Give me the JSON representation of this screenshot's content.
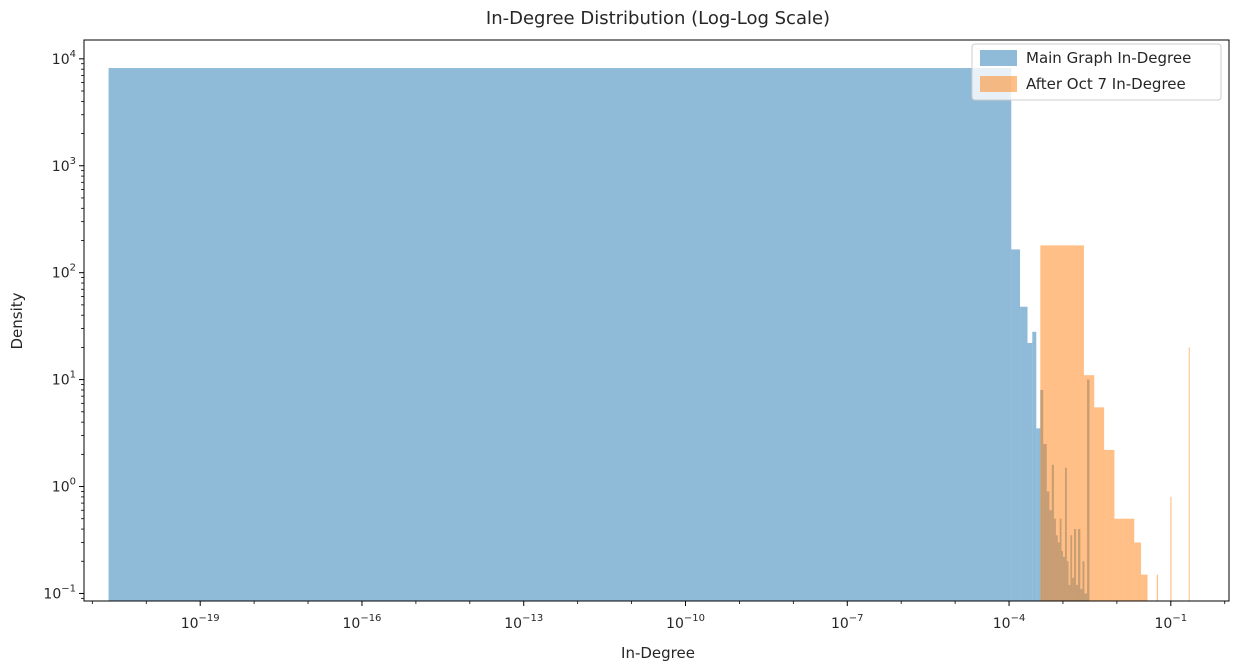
{
  "chart_data": {
    "type": "histogram",
    "title": "In-Degree Distribution (Log-Log Scale)",
    "xlabel": "In-Degree",
    "ylabel": "Density",
    "xscale": "log",
    "yscale": "log",
    "xlim": [
      7e-22,
      1.2
    ],
    "ylim": [
      0.085,
      15000
    ],
    "grid": false,
    "legend_position": "top-right",
    "x_ticks": [
      {
        "value": 1e-19,
        "base": "10",
        "exp": "−19"
      },
      {
        "value": 1e-16,
        "base": "10",
        "exp": "−16"
      },
      {
        "value": 1e-13,
        "base": "10",
        "exp": "−13"
      },
      {
        "value": 1e-10,
        "base": "10",
        "exp": "−10"
      },
      {
        "value": 1e-07,
        "base": "10",
        "exp": "−7"
      },
      {
        "value": 0.0001,
        "base": "10",
        "exp": "−4"
      },
      {
        "value": 0.1,
        "base": "10",
        "exp": "−1"
      }
    ],
    "y_ticks": [
      {
        "value": 0.1,
        "base": "10",
        "exp": "−1"
      },
      {
        "value": 1,
        "base": "10",
        "exp": "0"
      },
      {
        "value": 10,
        "base": "10",
        "exp": "1"
      },
      {
        "value": 100,
        "base": "10",
        "exp": "2"
      },
      {
        "value": 1000,
        "base": "10",
        "exp": "3"
      },
      {
        "value": 10000,
        "base": "10",
        "exp": "4"
      }
    ],
    "series": [
      {
        "name": "Main Graph In-Degree",
        "color": "#1f77b4",
        "opacity": 0.5,
        "bins": [
          {
            "x0": 2e-21,
            "x1": 0.00011,
            "y": 8200
          },
          {
            "x0": 0.00011,
            "x1": 0.00016,
            "y": 165
          },
          {
            "x0": 0.00016,
            "x1": 0.00022,
            "y": 48
          },
          {
            "x0": 0.00022,
            "x1": 0.00027,
            "y": 22
          },
          {
            "x0": 0.00027,
            "x1": 0.00032,
            "y": 28
          },
          {
            "x0": 0.00032,
            "x1": 0.00038,
            "y": 3.5
          },
          {
            "x0": 0.00038,
            "x1": 0.00043,
            "y": 8
          },
          {
            "x0": 0.00043,
            "x1": 0.0005,
            "y": 2.5
          },
          {
            "x0": 0.0005,
            "x1": 0.00056,
            "y": 0.9
          },
          {
            "x0": 0.00056,
            "x1": 0.00062,
            "y": 0.6
          },
          {
            "x0": 0.00062,
            "x1": 0.00068,
            "y": 1.6
          },
          {
            "x0": 0.00068,
            "x1": 0.00074,
            "y": 0.5
          },
          {
            "x0": 0.00074,
            "x1": 0.0008,
            "y": 0.35
          },
          {
            "x0": 0.0008,
            "x1": 0.00087,
            "y": 0.3
          },
          {
            "x0": 0.00087,
            "x1": 0.00094,
            "y": 0.5
          },
          {
            "x0": 0.00094,
            "x1": 0.001,
            "y": 0.25
          },
          {
            "x0": 0.001,
            "x1": 0.00109,
            "y": 0.22
          },
          {
            "x0": 0.00109,
            "x1": 0.00118,
            "y": 1.5
          },
          {
            "x0": 0.00118,
            "x1": 0.00127,
            "y": 0.2
          },
          {
            "x0": 0.00127,
            "x1": 0.00137,
            "y": 0.12
          },
          {
            "x0": 0.00137,
            "x1": 0.00148,
            "y": 0.35
          },
          {
            "x0": 0.00148,
            "x1": 0.0016,
            "y": 0.14
          },
          {
            "x0": 0.0016,
            "x1": 0.00175,
            "y": 0.4
          },
          {
            "x0": 0.00175,
            "x1": 0.0019,
            "y": 0.12
          },
          {
            "x0": 0.0019,
            "x1": 0.0021,
            "y": 0.4
          },
          {
            "x0": 0.0021,
            "x1": 0.0023,
            "y": 0.11
          },
          {
            "x0": 0.0023,
            "x1": 0.0025,
            "y": 0.2
          },
          {
            "x0": 0.0025,
            "x1": 0.0028,
            "y": 0.1
          },
          {
            "x0": 0.0028,
            "x1": 0.0031,
            "y": 10
          }
        ]
      },
      {
        "name": "After Oct 7 In-Degree",
        "color": "#ff7f0e",
        "opacity": 0.5,
        "bins": [
          {
            "x0": 0.00038,
            "x1": 0.00245,
            "y": 180
          },
          {
            "x0": 0.00245,
            "x1": 0.0038,
            "y": 11
          },
          {
            "x0": 0.0038,
            "x1": 0.0058,
            "y": 5.5
          },
          {
            "x0": 0.0058,
            "x1": 0.009,
            "y": 2.2
          },
          {
            "x0": 0.009,
            "x1": 0.014,
            "y": 0.5
          },
          {
            "x0": 0.014,
            "x1": 0.021,
            "y": 0.5
          },
          {
            "x0": 0.021,
            "x1": 0.028,
            "y": 0.3
          },
          {
            "x0": 0.028,
            "x1": 0.037,
            "y": 0.15
          },
          {
            "x0": 0.055,
            "x1": 0.058,
            "y": 0.15
          },
          {
            "x0": 0.098,
            "x1": 0.103,
            "y": 0.8
          },
          {
            "x0": 0.215,
            "x1": 0.22,
            "y": 20
          }
        ]
      }
    ]
  }
}
